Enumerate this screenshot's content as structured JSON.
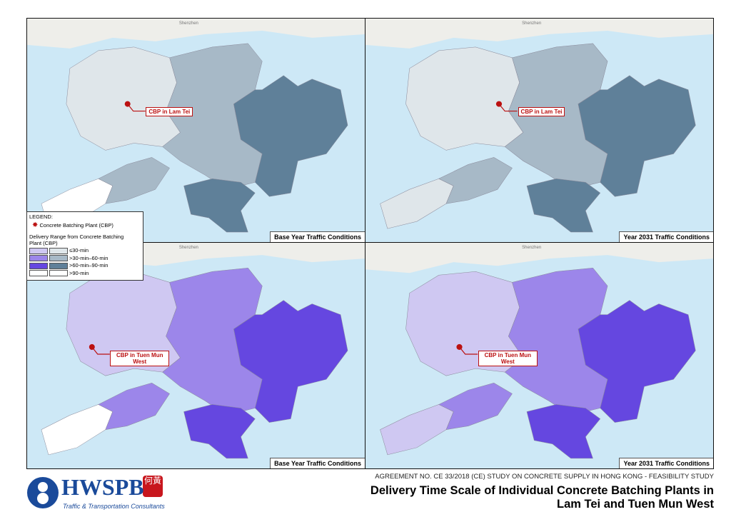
{
  "panels": [
    {
      "map_label": "Shenzhen",
      "plant_label": "CBP in Lam Tei",
      "caption": "Base Year Traffic Conditions"
    },
    {
      "map_label": "Shenzhen",
      "plant_label": "CBP in Lam Tei",
      "caption": "Year 2031 Traffic Conditions"
    },
    {
      "map_label": "Shenzhen",
      "plant_label": "CBP in Tuen Mun West",
      "caption": "Base Year Traffic Conditions"
    },
    {
      "map_label": "Shenzhen",
      "plant_label": "CBP in Tuen Mun West",
      "caption": "Year 2031 Traffic Conditions"
    }
  ],
  "legend": {
    "title": "LEGEND:",
    "plant": "Concrete Batching Plant (CBP)",
    "range_title": "Delivery Range from Concrete Batching Plant (CBP)",
    "items": [
      "≤30-min",
      ">30-min–60-min",
      ">60-min–90-min",
      ">90-min"
    ]
  },
  "footer": {
    "logo": "HWSPB",
    "logo_chinese": "何黃",
    "tagline": "Traffic & Transportation Consultants",
    "agreement": "AGREEMENT NO. CE 33/2018 (CE) STUDY ON CONCRETE SUPPLY IN HONG KONG - FEASIBILITY STUDY",
    "title_line1": "Delivery Time Scale of Individual Concrete Batching Plants in",
    "title_line2": "Lam Tei and Tuen Mun West"
  }
}
